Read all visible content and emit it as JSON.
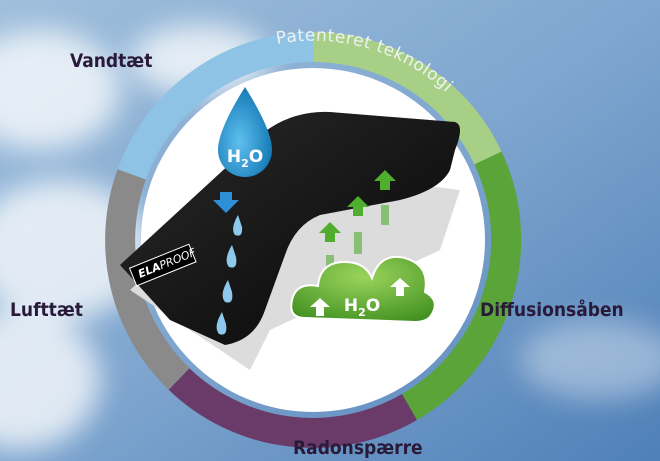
{
  "labels": {
    "top_left": "Vandtæt",
    "left": "Lufttæt",
    "right": "Diffusionsåben",
    "bottom": "Radonspærre"
  },
  "arc_text": "Patenteret teknologi",
  "water_drop": {
    "h": "H",
    "sub": "2",
    "o": "O"
  },
  "cloud": {
    "h": "H",
    "sub": "2",
    "o": "O"
  },
  "logo": {
    "part1": "ELA",
    "part2": "PROOF"
  }
}
